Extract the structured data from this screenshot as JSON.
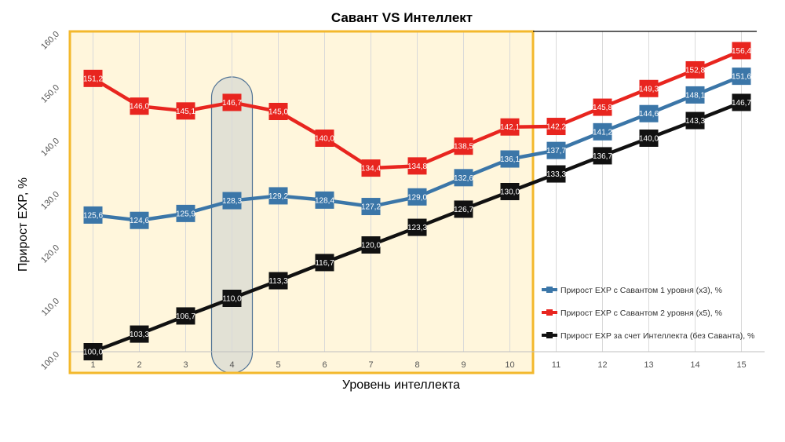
{
  "chart_data": {
    "type": "line",
    "title": "Савант VS Интеллект",
    "xlabel": "Уровень интеллекта",
    "ylabel": "Прирост EXP, %",
    "ylim": [
      100,
      160
    ],
    "yticks": [
      "100,0",
      "110,0",
      "120,0",
      "130,0",
      "140,0",
      "150,0",
      "160,0"
    ],
    "categories": [
      "1",
      "2",
      "3",
      "4",
      "5",
      "6",
      "7",
      "8",
      "9",
      "10",
      "11",
      "12",
      "13",
      "14",
      "15"
    ],
    "highlight_range": [
      "1",
      "10"
    ],
    "highlight_category": "4",
    "series": [
      {
        "name": "Прирост EXP с Савантом 1 уровня (x3), %",
        "color": "#3b76a8",
        "values": [
          125.6,
          124.6,
          125.9,
          128.3,
          129.2,
          128.4,
          127.2,
          129.0,
          132.6,
          136.1,
          137.7,
          141.2,
          144.6,
          148.1,
          151.6
        ],
        "labels": [
          "125,6",
          "124,6",
          "125,9",
          "128,3",
          "129,2",
          "128,4",
          "127,2",
          "129,0",
          "132,6",
          "136,1",
          "137,7",
          "141,2",
          "144,6",
          "148,1",
          "151,6"
        ]
      },
      {
        "name": "Прирост EXP с Савантом 2 уровня (x5), %",
        "color": "#e8251f",
        "values": [
          151.2,
          146.0,
          145.1,
          146.7,
          145.0,
          140.0,
          134.4,
          134.8,
          138.5,
          142.1,
          142.2,
          145.8,
          149.3,
          152.8,
          156.4
        ],
        "labels": [
          "151,2",
          "146,0",
          "145,1",
          "146,7",
          "145,0",
          "140,0",
          "134,4",
          "134,8",
          "138,5",
          "142,1",
          "142,2",
          "145,8",
          "149,3",
          "152,8",
          "156,4"
        ]
      },
      {
        "name": "Прирост EXP за счет Интеллекта (без Саванта), %",
        "color": "#111111",
        "values": [
          100.0,
          103.3,
          106.7,
          110.0,
          113.3,
          116.7,
          120.0,
          123.3,
          126.7,
          130.0,
          133.3,
          136.7,
          140.0,
          143.3,
          146.7
        ],
        "labels": [
          "100,0",
          "103,3",
          "106,7",
          "110,0",
          "113,3",
          "116,7",
          "120,0",
          "123,3",
          "126,7",
          "130,0",
          "133,3",
          "136,7",
          "140,0",
          "143,3",
          "146,7"
        ]
      }
    ]
  }
}
